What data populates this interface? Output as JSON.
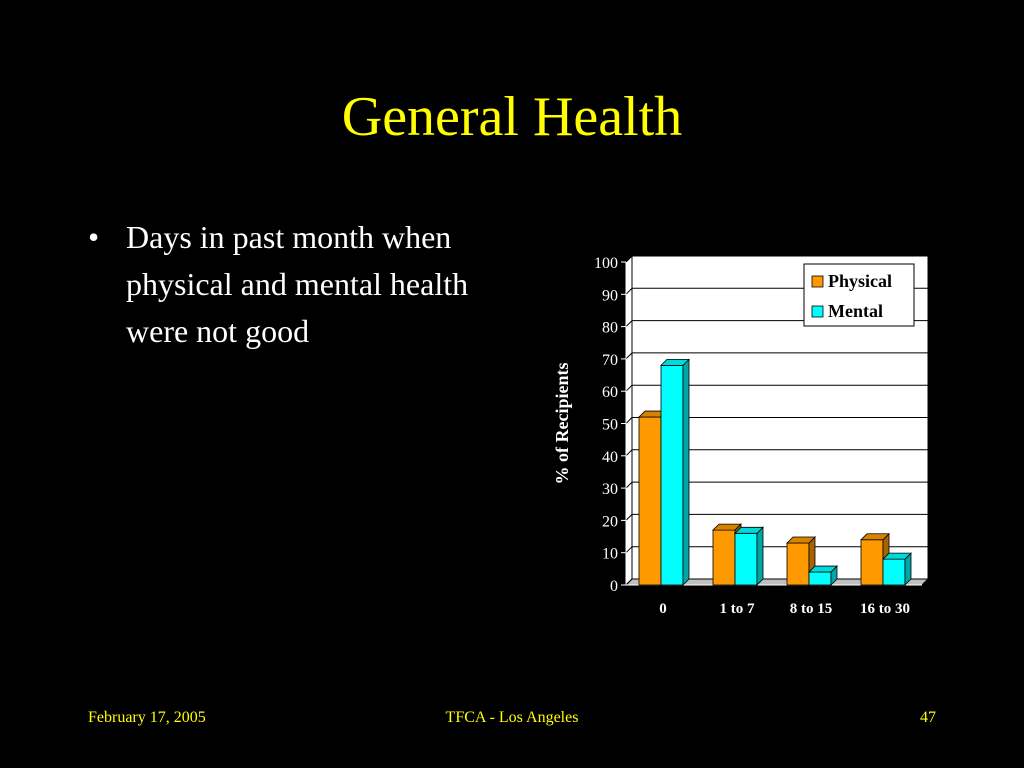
{
  "slide": {
    "title": "General Health",
    "bullets": [
      {
        "marker": "•",
        "text": "Days in past month when physical and mental health were not good"
      }
    ]
  },
  "footer": {
    "date": "February 17, 2005",
    "center": "TFCA - Los Angeles",
    "page_number": "47"
  },
  "colors": {
    "background": "#000000",
    "title": "#FFFF00",
    "body_text": "#FFFFFF",
    "physical": "#FF9900",
    "mental": "#00FFFF",
    "gridline": "#000000",
    "plot_bg": "#FFFFFF"
  },
  "chart_data": {
    "type": "bar",
    "style": "3d-clustered",
    "categories": [
      "0",
      "1 to 7",
      "8 to 15",
      "16 to 30"
    ],
    "series": [
      {
        "name": "Physical",
        "values": [
          52,
          17,
          13,
          14
        ]
      },
      {
        "name": "Mental",
        "values": [
          68,
          16,
          4,
          8
        ]
      }
    ],
    "ylabel": "%  of  Recipients",
    "xlabel": "",
    "ylim": [
      0,
      100
    ],
    "yticks": [
      0,
      10,
      20,
      30,
      40,
      50,
      60,
      70,
      80,
      90,
      100
    ],
    "grid": true,
    "legend": "top-right"
  }
}
